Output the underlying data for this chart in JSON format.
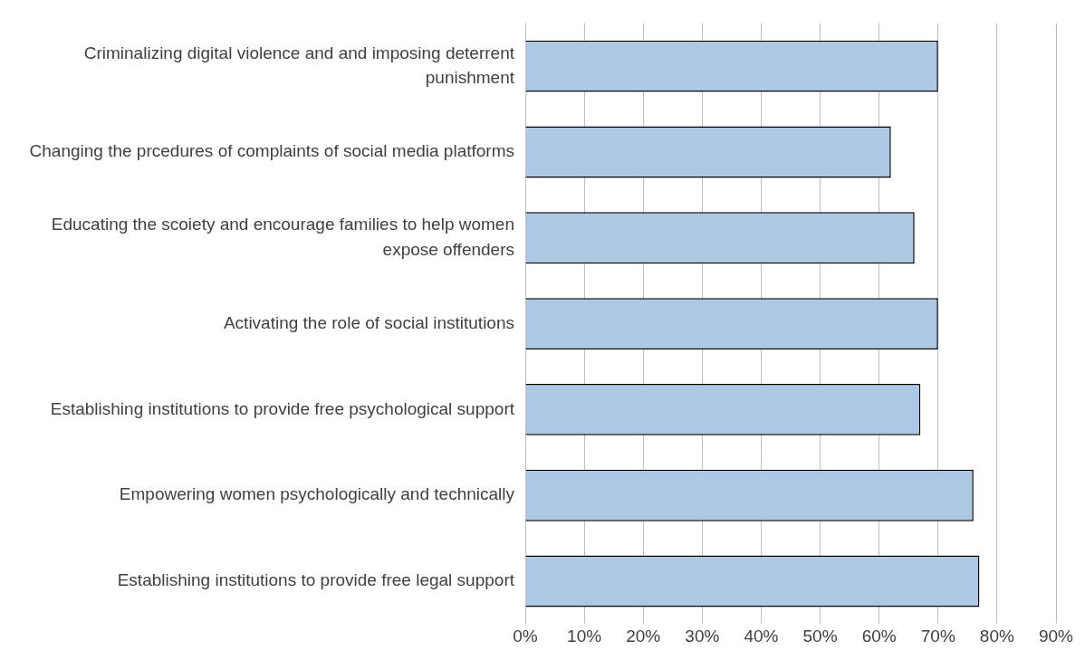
{
  "chart_data": {
    "type": "bar",
    "orientation": "horizontal",
    "categories": [
      "Criminalizing digital violence and and imposing deterrent punishment",
      "Changing the prcedures of complaints of social media platforms",
      "Educating the scoiety and encourage families to help women expose offenders",
      "Activating the role of social institutions",
      "Establishing institutions to provide free psychological support",
      "Empowering women psychologically and technically",
      "Establishing institutions to provide free legal support"
    ],
    "values": [
      70,
      62,
      66,
      70,
      67,
      76,
      77
    ],
    "color": "#adc8e4",
    "xlim": [
      0,
      90
    ],
    "xticks": [
      {
        "value": 0,
        "label": "0%"
      },
      {
        "value": 10,
        "label": "10%"
      },
      {
        "value": 20,
        "label": "20%"
      },
      {
        "value": 30,
        "label": "30%"
      },
      {
        "value": 40,
        "label": "40%"
      },
      {
        "value": 50,
        "label": "50%"
      },
      {
        "value": 60,
        "label": "60%"
      },
      {
        "value": 70,
        "label": "70%"
      },
      {
        "value": 80,
        "label": "80%"
      },
      {
        "value": 90,
        "label": "90%"
      }
    ],
    "grid": "x",
    "legend": false
  }
}
